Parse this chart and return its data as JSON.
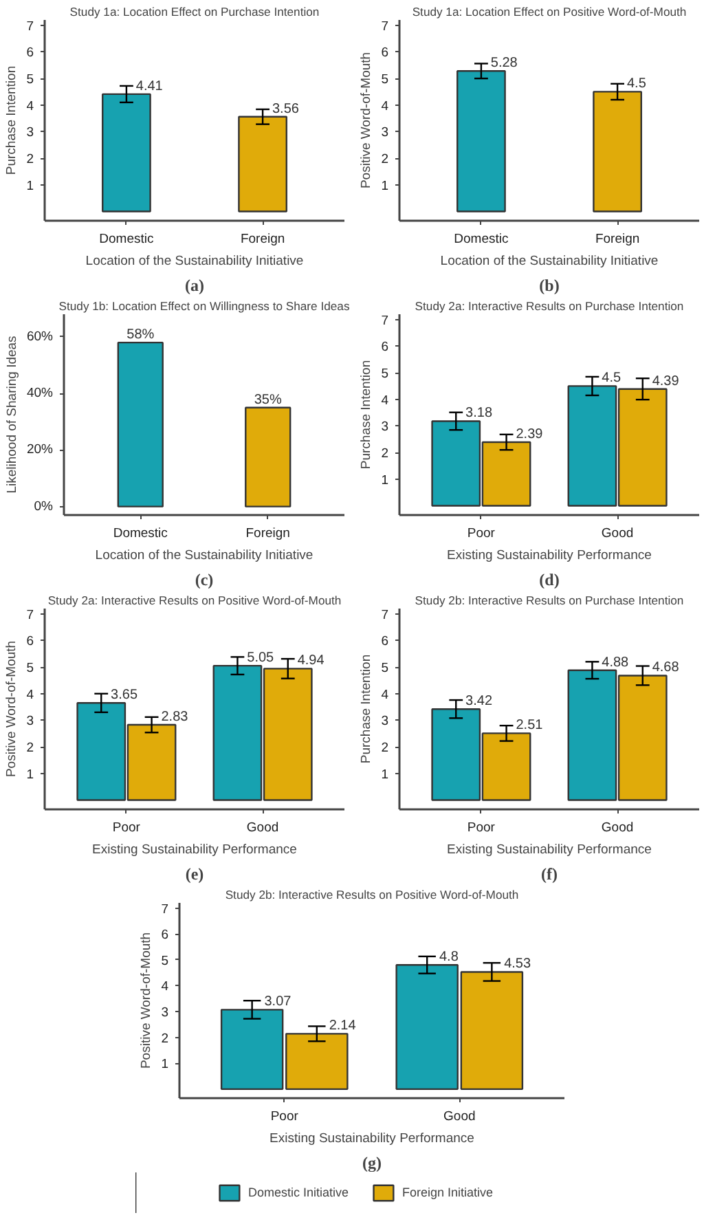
{
  "chart_data": [
    {
      "type": "bar",
      "title": "Study 1a: Location Effect on Purchase Intention",
      "xlabel": "Location of the Sustainability Initiative",
      "ylabel": "Purchase Intention",
      "annotations": [
        "(a)"
      ],
      "categories": [
        "Domestic",
        "Foreign"
      ],
      "values": [
        4.41,
        3.56
      ],
      "colors": [
        "#17a2b0",
        "#e0ab0a"
      ],
      "errors": [
        0.31,
        0.28
      ],
      "data_labels": true,
      "ylim": [
        -0.35,
        7.2
      ],
      "yticks": [
        1,
        2,
        3,
        4,
        5,
        6,
        7
      ],
      "grid": false
    },
    {
      "type": "bar",
      "title": "Study 1a: Location Effect on Positive Word-of-Mouth",
      "xlabel": "Location of the Sustainability Initiative",
      "ylabel": "Positive Word-of-Mouth",
      "annotations": [
        "(b)"
      ],
      "categories": [
        "Domestic",
        "Foreign"
      ],
      "values": [
        5.28,
        4.5
      ],
      "colors": [
        "#17a2b0",
        "#e0ab0a"
      ],
      "errors": [
        0.28,
        0.3
      ],
      "data_labels": true,
      "ylim": [
        -0.35,
        7.2
      ],
      "yticks": [
        1,
        2,
        3,
        4,
        5,
        6,
        7
      ],
      "grid": false
    },
    {
      "type": "bar",
      "title": "Study 1b: Location Effect on Willingness to Share Ideas",
      "xlabel": "Location of the Sustainability Initiative",
      "ylabel": "Likelihood of Sharing Ideas",
      "annotations": [
        "(c)"
      ],
      "categories": [
        "Domestic",
        "Foreign"
      ],
      "values": [
        58,
        35
      ],
      "colors": [
        "#17a2b0",
        "#e0ab0a"
      ],
      "value_labels": [
        "58%",
        "35%"
      ],
      "ylim": [
        -3,
        68
      ],
      "yticks": [
        {
          "value": 0,
          "label": "0%"
        },
        {
          "value": 20,
          "label": "20%"
        },
        {
          "value": 40,
          "label": "40%"
        },
        {
          "value": 60,
          "label": "60%"
        }
      ],
      "grid": false
    },
    {
      "type": "bar",
      "title": "Study 2a: Interactive Results on Purchase Intention",
      "xlabel": "Existing Sustainability Performance",
      "ylabel": "Purchase Intention",
      "annotations": [
        "(d)"
      ],
      "categories": [
        "Poor",
        "Good"
      ],
      "series": [
        {
          "color": "#17a2b0",
          "values": [
            3.18,
            4.5
          ],
          "errors": [
            0.33,
            0.35
          ]
        },
        {
          "color": "#e0ab0a",
          "values": [
            2.39,
            4.39
          ],
          "errors": [
            0.29,
            0.4
          ]
        }
      ],
      "data_labels": true,
      "ylim": [
        -0.35,
        7.2
      ],
      "yticks": [
        1,
        2,
        3,
        4,
        5,
        6,
        7
      ],
      "grid": false
    },
    {
      "type": "bar",
      "title": "Study 2a: Interactive Results on Positive Word-of-Mouth",
      "xlabel": "Existing Sustainability Performance",
      "ylabel": "Positive Word-of-Mouth",
      "annotations": [
        "(e)"
      ],
      "categories": [
        "Poor",
        "Good"
      ],
      "series": [
        {
          "color": "#17a2b0",
          "values": [
            3.65,
            5.05
          ],
          "errors": [
            0.35,
            0.33
          ]
        },
        {
          "color": "#e0ab0a",
          "values": [
            2.83,
            4.94
          ],
          "errors": [
            0.29,
            0.37
          ]
        }
      ],
      "data_labels": true,
      "ylim": [
        -0.35,
        7.2
      ],
      "yticks": [
        1,
        2,
        3,
        4,
        5,
        6,
        7
      ],
      "grid": false
    },
    {
      "type": "bar",
      "title": "Study 2b: Interactive Results on Purchase Intention",
      "xlabel": "Existing Sustainability Performance",
      "ylabel": "Purchase Intention",
      "annotations": [
        "(f)"
      ],
      "categories": [
        "Poor",
        "Good"
      ],
      "series": [
        {
          "color": "#17a2b0",
          "values": [
            3.42,
            4.88
          ],
          "errors": [
            0.34,
            0.32
          ]
        },
        {
          "color": "#e0ab0a",
          "values": [
            2.51,
            4.68
          ],
          "errors": [
            0.29,
            0.36
          ]
        }
      ],
      "data_labels": true,
      "ylim": [
        -0.35,
        7.2
      ],
      "yticks": [
        1,
        2,
        3,
        4,
        5,
        6,
        7
      ],
      "grid": false
    },
    {
      "type": "bar",
      "title": "Study 2b: Interactive Results on Positive Word-of-Mouth",
      "xlabel": "Existing Sustainability Performance",
      "ylabel": "Positive Word-of-Mouth",
      "annotations": [
        "(g)"
      ],
      "categories": [
        "Poor",
        "Good"
      ],
      "series": [
        {
          "name": "Domestic Initiative",
          "color": "#17a2b0",
          "values": [
            3.07,
            4.8
          ],
          "errors": [
            0.35,
            0.33
          ]
        },
        {
          "name": "Foreign Initiative",
          "color": "#e0ab0a",
          "values": [
            2.14,
            4.53
          ],
          "errors": [
            0.29,
            0.35
          ]
        }
      ],
      "data_labels": true,
      "ylim": [
        -0.35,
        7.2
      ],
      "yticks": [
        1,
        2,
        3,
        4,
        5,
        6,
        7
      ],
      "grid": false,
      "legend": "bottom"
    }
  ]
}
